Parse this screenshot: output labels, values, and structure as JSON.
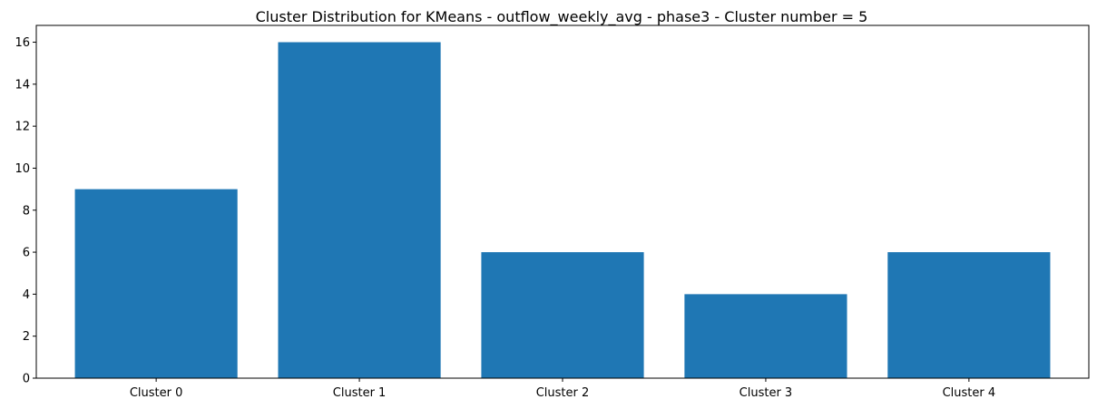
{
  "chart_data": {
    "type": "bar",
    "title": "Cluster Distribution for KMeans - outflow_weekly_avg - phase3 - Cluster number = 5",
    "xlabel": "",
    "ylabel": "",
    "categories": [
      "Cluster 0",
      "Cluster 1",
      "Cluster 2",
      "Cluster 3",
      "Cluster 4"
    ],
    "values": [
      9,
      16,
      6,
      4,
      6
    ],
    "ylim": [
      0,
      16.8
    ],
    "yticks": [
      0,
      2,
      4,
      6,
      8,
      10,
      12,
      14,
      16
    ],
    "grid": false,
    "legend": "none",
    "bar_color": "#1f77b4"
  }
}
